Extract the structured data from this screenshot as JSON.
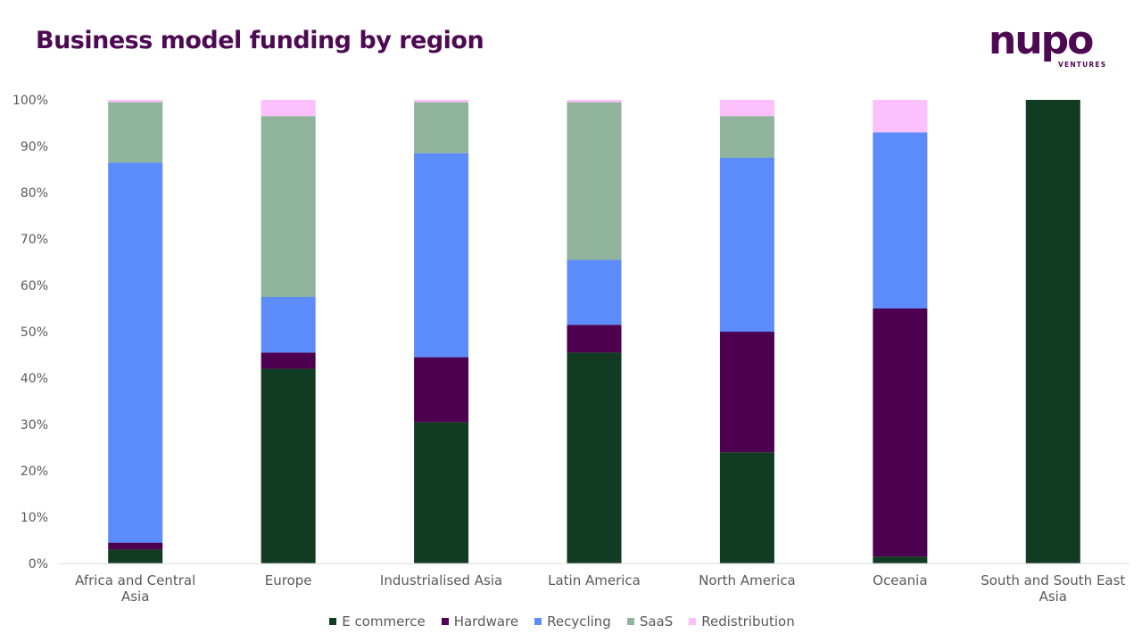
{
  "header": {
    "title": "Business model funding by region"
  },
  "logo": {
    "word": "nupo",
    "sub": "VENTURES"
  },
  "colors": {
    "title": "#4d0a52",
    "logo": "#4d0a52",
    "axis_text": "#595959",
    "axis_line": "#d9d9d9"
  },
  "chart_data": {
    "type": "bar",
    "stacked": true,
    "percent_stacked": true,
    "categories": [
      "Africa and Central Asia",
      "Europe",
      "Industrialised Asia",
      "Latin America",
      "North America",
      "Oceania",
      "South and South East Asia"
    ],
    "series": [
      {
        "name": "E commerce",
        "color": "#113b22",
        "values": [
          3,
          42,
          30.5,
          45.5,
          24,
          1.5,
          100
        ]
      },
      {
        "name": "Hardware",
        "color": "#4d0050",
        "values": [
          1.5,
          3.5,
          14,
          6,
          26,
          53.5,
          0
        ]
      },
      {
        "name": "Recycling",
        "color": "#5c8bfc",
        "values": [
          82,
          12,
          44,
          14,
          37.5,
          38,
          0
        ]
      },
      {
        "name": "SaaS",
        "color": "#8fb39b",
        "values": [
          13,
          39,
          11,
          34,
          9,
          0,
          0
        ]
      },
      {
        "name": "Redistribution",
        "color": "#fcc0fc",
        "values": [
          0.5,
          3.5,
          0.5,
          0.5,
          3.5,
          7,
          0
        ]
      }
    ],
    "ylim": [
      0,
      100
    ],
    "y_ticks": [
      "0%",
      "10%",
      "20%",
      "30%",
      "40%",
      "50%",
      "60%",
      "70%",
      "80%",
      "90%",
      "100%"
    ],
    "grid": false,
    "legend_position": "bottom",
    "xlabel": "",
    "ylabel": ""
  }
}
